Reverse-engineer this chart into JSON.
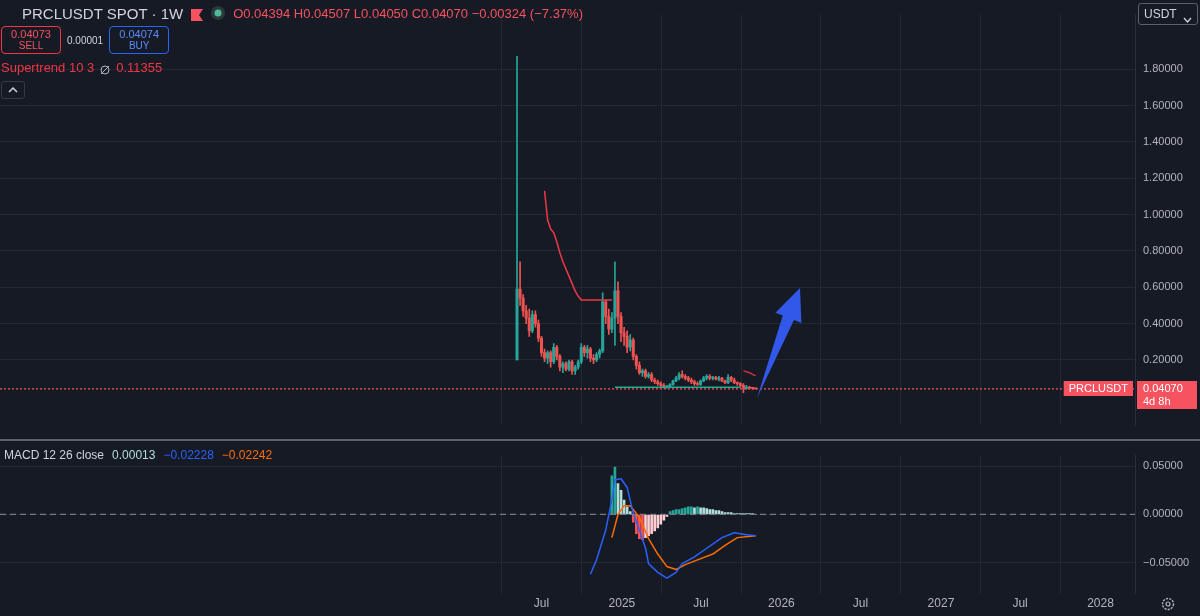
{
  "chart_data": [
    {
      "type": "candlestick",
      "title": "PRCLUSDT SPOT · 1W",
      "subtitle": "O0.04394  H0.04507  L0.04050  C0.04070  −0.00324 (−7.37%)",
      "annotations": [
        "0.04073",
        "SELL",
        "0.00001",
        "0.04074",
        "BUY",
        "0.11355",
        "USDT",
        "0.04070",
        "4d 8h"
      ],
      "series": [
        {
          "x": [
            "2024-05-06",
            "2024-05-13",
            "2024-05-20",
            "2024-05-27",
            "2024-06-03",
            "2024-06-10",
            "2024-06-17",
            "2024-06-24",
            "2024-07-01",
            "2024-07-08",
            "2024-07-15",
            "2024-07-22",
            "2024-07-29",
            "2024-08-05",
            "2024-08-12",
            "2024-08-19",
            "2024-08-26",
            "2024-09-02",
            "2024-09-09",
            "2024-09-16",
            "2024-09-23",
            "2024-09-30",
            "2024-10-07",
            "2024-10-14",
            "2024-10-21",
            "2024-10-28",
            "2024-11-04",
            "2024-11-11",
            "2024-11-18",
            "2024-11-25",
            "2024-12-02",
            "2024-12-09",
            "2024-12-16",
            "2024-12-23",
            "2024-12-30",
            "2025-01-06",
            "2025-01-13",
            "2025-01-20",
            "2025-01-27",
            "2025-02-03",
            "2025-02-10",
            "2025-02-17",
            "2025-02-24",
            "2025-03-03",
            "2025-03-10",
            "2025-03-17",
            "2025-03-24",
            "2025-03-31",
            "2025-04-07",
            "2025-04-14",
            "2025-04-21",
            "2025-04-28",
            "2025-05-05",
            "2025-05-12",
            "2025-05-19",
            "2025-05-26",
            "2025-06-02",
            "2025-06-09",
            "2025-06-16",
            "2025-06-23",
            "2025-06-30",
            "2025-07-07",
            "2025-07-14",
            "2025-07-21",
            "2025-07-28",
            "2025-08-04",
            "2025-08-11",
            "2025-08-18",
            "2025-08-25",
            "2025-09-01",
            "2025-09-08",
            "2025-09-15",
            "2025-09-22",
            "2025-09-29",
            "2025-10-06",
            "2025-10-13",
            "2025-10-20",
            "2025-10-27",
            "2025-11-03"
          ],
          "ohlc": [
            [
              0.2,
              1.87,
              0.2,
              0.59
            ],
            [
              0.59,
              0.74,
              0.5,
              0.54
            ],
            [
              0.54,
              0.56,
              0.44,
              0.47
            ],
            [
              0.47,
              0.5,
              0.4,
              0.43
            ],
            [
              0.43,
              0.48,
              0.33,
              0.36
            ],
            [
              0.36,
              0.47,
              0.35,
              0.45
            ],
            [
              0.45,
              0.47,
              0.38,
              0.4
            ],
            [
              0.4,
              0.42,
              0.3,
              0.32
            ],
            [
              0.32,
              0.33,
              0.22,
              0.24
            ],
            [
              0.24,
              0.26,
              0.19,
              0.21
            ],
            [
              0.21,
              0.25,
              0.18,
              0.24
            ],
            [
              0.24,
              0.25,
              0.16,
              0.19
            ],
            [
              0.19,
              0.29,
              0.18,
              0.27
            ],
            [
              0.27,
              0.28,
              0.2,
              0.22
            ],
            [
              0.22,
              0.23,
              0.14,
              0.16
            ],
            [
              0.16,
              0.19,
              0.13,
              0.18
            ],
            [
              0.18,
              0.19,
              0.14,
              0.15
            ],
            [
              0.15,
              0.2,
              0.14,
              0.19
            ],
            [
              0.19,
              0.2,
              0.12,
              0.14
            ],
            [
              0.14,
              0.17,
              0.12,
              0.16
            ],
            [
              0.16,
              0.2,
              0.15,
              0.19
            ],
            [
              0.19,
              0.29,
              0.18,
              0.27
            ],
            [
              0.27,
              0.28,
              0.22,
              0.24
            ],
            [
              0.24,
              0.28,
              0.21,
              0.26
            ],
            [
              0.26,
              0.27,
              0.19,
              0.21
            ],
            [
              0.21,
              0.23,
              0.18,
              0.2
            ],
            [
              0.2,
              0.24,
              0.19,
              0.23
            ],
            [
              0.23,
              0.26,
              0.21,
              0.25
            ],
            [
              0.25,
              0.57,
              0.24,
              0.52
            ],
            [
              0.52,
              0.53,
              0.4,
              0.44
            ],
            [
              0.44,
              0.48,
              0.34,
              0.37
            ],
            [
              0.37,
              0.46,
              0.35,
              0.43
            ],
            [
              0.43,
              0.74,
              0.28,
              0.58
            ],
            [
              0.58,
              0.63,
              0.4,
              0.44
            ],
            [
              0.44,
              0.46,
              0.3,
              0.35
            ],
            [
              0.35,
              0.38,
              0.28,
              0.33
            ],
            [
              0.33,
              0.36,
              0.24,
              0.27
            ],
            [
              0.27,
              0.34,
              0.25,
              0.31
            ],
            [
              0.31,
              0.32,
              0.2,
              0.22
            ],
            [
              0.22,
              0.23,
              0.15,
              0.17
            ],
            [
              0.17,
              0.19,
              0.12,
              0.13
            ],
            [
              0.13,
              0.15,
              0.11,
              0.14
            ],
            [
              0.14,
              0.15,
              0.1,
              0.11
            ],
            [
              0.11,
              0.13,
              0.1,
              0.12
            ],
            [
              0.12,
              0.13,
              0.08,
              0.09
            ],
            [
              0.09,
              0.1,
              0.07,
              0.08
            ],
            [
              0.08,
              0.09,
              0.06,
              0.07
            ],
            [
              0.07,
              0.08,
              0.05,
              0.06
            ],
            [
              0.06,
              0.07,
              0.045,
              0.05
            ],
            [
              0.05,
              0.06,
              0.045,
              0.055
            ],
            [
              0.055,
              0.07,
              0.05,
              0.065
            ],
            [
              0.065,
              0.09,
              0.06,
              0.085
            ],
            [
              0.085,
              0.11,
              0.08,
              0.1
            ],
            [
              0.1,
              0.13,
              0.09,
              0.12
            ],
            [
              0.12,
              0.14,
              0.1,
              0.11
            ],
            [
              0.11,
              0.12,
              0.09,
              0.1
            ],
            [
              0.1,
              0.11,
              0.08,
              0.09
            ],
            [
              0.09,
              0.1,
              0.07,
              0.08
            ],
            [
              0.08,
              0.09,
              0.06,
              0.07
            ],
            [
              0.07,
              0.08,
              0.06,
              0.065
            ],
            [
              0.065,
              0.09,
              0.06,
              0.085
            ],
            [
              0.085,
              0.11,
              0.08,
              0.1
            ],
            [
              0.1,
              0.12,
              0.09,
              0.11
            ],
            [
              0.11,
              0.12,
              0.09,
              0.1
            ],
            [
              0.1,
              0.11,
              0.09,
              0.105
            ],
            [
              0.105,
              0.11,
              0.09,
              0.095
            ],
            [
              0.095,
              0.11,
              0.085,
              0.1
            ],
            [
              0.1,
              0.105,
              0.08,
              0.085
            ],
            [
              0.085,
              0.09,
              0.07,
              0.075
            ],
            [
              0.075,
              0.12,
              0.07,
              0.105
            ],
            [
              0.105,
              0.11,
              0.08,
              0.09
            ],
            [
              0.09,
              0.1,
              0.07,
              0.075
            ],
            [
              0.075,
              0.08,
              0.06,
              0.07
            ],
            [
              0.07,
              0.075,
              0.05,
              0.06
            ],
            [
              0.06,
              0.07,
              0.02,
              0.045
            ],
            [
              0.045,
              0.06,
              0.04,
              0.05
            ],
            [
              0.05,
              0.055,
              0.04,
              0.045
            ],
            [
              0.045,
              0.05,
              0.04,
              0.04394
            ],
            [
              0.04394,
              0.04507,
              0.0405,
              0.0407
            ]
          ]
        },
        {
          "type": "line",
          "name": "Supertrend 10 3",
          "color": "#f23645",
          "x": [
            "2024-07-08",
            "2024-07-15",
            "2024-07-22",
            "2024-07-29",
            "2024-08-05",
            "2024-08-12",
            "2024-08-19",
            "2024-08-26",
            "2024-09-02",
            "2024-09-09",
            "2024-09-16",
            "2024-09-23",
            "2024-09-30",
            "2024-10-07",
            "2024-10-14",
            "2024-10-21",
            "2024-10-28",
            "2024-11-04",
            "2024-11-11",
            "2024-11-18",
            "2024-11-25",
            "2024-12-02",
            "2024-12-09"
          ],
          "values": [
            1.13,
            0.97,
            0.92,
            0.9,
            0.85,
            0.79,
            0.74,
            0.7,
            0.66,
            0.62,
            0.58,
            0.55,
            0.53,
            0.53,
            0.53,
            0.53,
            0.53,
            0.53,
            0.53,
            0.53,
            0.53,
            0.53,
            0.53
          ]
        },
        {
          "type": "line",
          "color": "#c9303c",
          "x": [
            "2025-10-06",
            "2025-10-13",
            "2025-10-20",
            "2025-10-27",
            "2025-11-03"
          ],
          "values": [
            0.14,
            0.135,
            0.13,
            0.12,
            0.114
          ]
        },
        {
          "type": "line",
          "color": "#22ab94",
          "x": [
            "2024-12-16",
            "2025-09-29"
          ],
          "values": [
            0.05,
            0.05
          ]
        }
      ],
      "ref_lines": [
        {
          "axis": "y",
          "value": 0.0407,
          "label": "PRCLUSDT",
          "color": "#f7525f",
          "line_style": "dotted"
        }
      ],
      "xlim": [
        "2021-02-08",
        "2028-03-20"
      ],
      "xticks": [
        {
          "value": "2024-07-01",
          "label": null
        },
        {
          "value": "2025-01-01",
          "label": null
        },
        {
          "value": "2025-07-01",
          "label": null
        },
        {
          "value": "2026-01-01",
          "label": null
        },
        {
          "value": "2026-07-01",
          "label": null
        },
        {
          "value": "2027-01-01",
          "label": null
        },
        {
          "value": "2027-07-01",
          "label": null
        },
        {
          "value": "2028-01-01",
          "label": null
        }
      ],
      "ylim": [
        -0.16,
        2.1
      ],
      "yticks": [
        {
          "value": 0.2,
          "label": "0.20000"
        },
        {
          "value": 0.4,
          "label": "0.40000"
        },
        {
          "value": 0.6,
          "label": "0.60000"
        },
        {
          "value": 0.8,
          "label": "0.80000"
        },
        {
          "value": 1.0,
          "label": "1.00000"
        },
        {
          "value": 1.2,
          "label": "1.20000"
        },
        {
          "value": 1.4,
          "label": "1.40000"
        },
        {
          "value": 1.6,
          "label": "1.60000"
        },
        {
          "value": 1.8,
          "label": "1.80000"
        }
      ],
      "tick_labels": "y",
      "grid": true,
      "legend": false
    },
    {
      "type": "bar",
      "title": "MACD 12 26 close",
      "annotations": [
        "0.00013",
        "−0.02228",
        "−0.02242"
      ],
      "series": [
        {
          "x": [
            "2024-12-09",
            "2024-12-16",
            "2024-12-23",
            "2024-12-30",
            "2025-01-06",
            "2025-01-13",
            "2025-01-20",
            "2025-01-27",
            "2025-02-03",
            "2025-02-10",
            "2025-02-17",
            "2025-02-24",
            "2025-03-03",
            "2025-03-10",
            "2025-03-17",
            "2025-03-24",
            "2025-03-31",
            "2025-04-07",
            "2025-04-14",
            "2025-04-21",
            "2025-04-28",
            "2025-05-05",
            "2025-05-12",
            "2025-05-19",
            "2025-05-26",
            "2025-06-02",
            "2025-06-09",
            "2025-06-16",
            "2025-06-23",
            "2025-06-30",
            "2025-07-07",
            "2025-07-14",
            "2025-07-21",
            "2025-07-28",
            "2025-08-04",
            "2025-08-11",
            "2025-08-18",
            "2025-08-25",
            "2025-09-01",
            "2025-09-08",
            "2025-09-15",
            "2025-09-22",
            "2025-09-29",
            "2025-10-06",
            "2025-10-13",
            "2025-10-20",
            "2025-10-27",
            "2025-11-03"
          ],
          "values": [
            0.04,
            0.049,
            0.032,
            0.025,
            0.015,
            0.008,
            0.003,
            -0.008,
            -0.02,
            -0.025,
            -0.026,
            -0.024,
            -0.022,
            -0.02,
            -0.017,
            -0.014,
            -0.01,
            -0.006,
            -0.002,
            0.003,
            0.004,
            0.005,
            0.005,
            0.006,
            0.007,
            0.008,
            0.008,
            0.007,
            0.008,
            0.007,
            0.007,
            0.006,
            0.005,
            0.005,
            0.004,
            0.004,
            0.003,
            0.002,
            0.002,
            0.002,
            0.001,
            0.001,
            0.001,
            0.001,
            0.001,
            0.001,
            0.001,
            0
          ],
          "colors": [
            "#26a69a",
            "#26a69a",
            "#b2dfdb",
            "#b2dfdb",
            "#b2dfdb",
            "#b2dfdb",
            "#b2dfdb",
            "#ff5252",
            "#ff5252",
            "#ff5252",
            "#ff5252",
            "#ffcdd2",
            "#ffcdd2",
            "#ffcdd2",
            "#ffcdd2",
            "#ffcdd2",
            "#ffcdd2",
            "#ffcdd2",
            "#ffcdd2",
            "#26a69a",
            "#26a69a",
            "#26a69a",
            "#26a69a",
            "#26a69a",
            "#26a69a",
            "#26a69a",
            "#26a69a",
            "#b2dfdb",
            "#26a69a",
            "#b2dfdb",
            "#b2dfdb",
            "#b2dfdb",
            "#b2dfdb",
            "#b2dfdb",
            "#b2dfdb",
            "#b2dfdb",
            "#b2dfdb",
            "#b2dfdb",
            "#b2dfdb",
            "#b2dfdb",
            "#b2dfdb",
            "#b2dfdb",
            "#b2dfdb",
            "#b2dfdb",
            "#b2dfdb",
            "#b2dfdb",
            "#b2dfdb",
            "#b2dfdb"
          ]
        },
        {
          "type": "line",
          "color": "#2962ff",
          "x": [
            "2024-10-21",
            "2024-11-04",
            "2024-11-25",
            "2024-12-09",
            "2024-12-16",
            "2024-12-30",
            "2025-01-13",
            "2025-01-27",
            "2025-02-10",
            "2025-02-24",
            "2025-03-03",
            "2025-03-24",
            "2025-04-14",
            "2025-05-05",
            "2025-05-19",
            "2025-06-16",
            "2025-07-14",
            "2025-08-18",
            "2025-09-15",
            "2025-10-13",
            "2025-11-03"
          ],
          "values": [
            -0.062,
            -0.047,
            -0.016,
            0.015,
            0.036,
            0.037,
            0.028,
            0.001,
            -0.016,
            -0.035,
            -0.051,
            -0.06,
            -0.066,
            -0.06,
            -0.051,
            -0.044,
            -0.035,
            -0.024,
            -0.019,
            -0.021,
            -0.022
          ]
        },
        {
          "type": "line",
          "color": "#ff6d00",
          "x": [
            "2024-12-09",
            "2024-12-23",
            "2025-01-06",
            "2025-01-20",
            "2025-02-10",
            "2025-03-03",
            "2025-03-24",
            "2025-04-14",
            "2025-05-05",
            "2025-05-26",
            "2025-06-23",
            "2025-07-28",
            "2025-08-25",
            "2025-09-22",
            "2025-11-03"
          ],
          "values": [
            -0.024,
            0,
            0.009,
            0.009,
            -0.003,
            -0.025,
            -0.041,
            -0.054,
            -0.057,
            -0.052,
            -0.047,
            -0.041,
            -0.032,
            -0.024,
            -0.022
          ]
        }
      ],
      "ref_lines": [
        {
          "axis": "y",
          "value": 0,
          "color": "#787b86",
          "line_style": "dashed"
        }
      ],
      "xlim": [
        "2021-02-08",
        "2028-03-20"
      ],
      "xticks": [
        {
          "value": "2024-07-01",
          "label": "Jul"
        },
        {
          "value": "2025-01-01",
          "label": "2025"
        },
        {
          "value": "2025-07-01",
          "label": "Jul"
        },
        {
          "value": "2026-01-01",
          "label": "2026"
        },
        {
          "value": "2026-07-01",
          "label": "Jul"
        },
        {
          "value": "2027-01-01",
          "label": "2027"
        },
        {
          "value": "2027-07-01",
          "label": "Jul"
        },
        {
          "value": "2028-01-01",
          "label": "2028"
        }
      ],
      "ylim": [
        -0.082,
        0.061
      ],
      "yticks": [
        {
          "value": -0.05,
          "label": "−0.05000"
        },
        {
          "value": 0,
          "label": "0.00000"
        },
        {
          "value": 0.05,
          "label": "0.05000"
        }
      ],
      "grid": true,
      "legend": false
    }
  ]
}
